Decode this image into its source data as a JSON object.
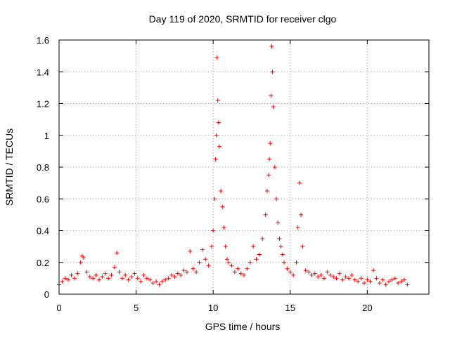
{
  "chart_data": {
    "type": "scatter",
    "title": "Day 119 of 2020, SRMTID for receiver clgo",
    "xlabel": "GPS time / hours",
    "ylabel": "SRMTID / TECUs",
    "xlim": [
      0,
      24
    ],
    "ylim": [
      0,
      1.6
    ],
    "xticks": [
      0,
      5,
      10,
      15,
      20
    ],
    "yticks": [
      0,
      0.2,
      0.4,
      0.6,
      0.8,
      1,
      1.2,
      1.4,
      1.6
    ],
    "grid": true,
    "marker": "+",
    "color": "#ff0000",
    "series": [
      {
        "name": "SRMTID",
        "x": [
          0.0,
          0.2,
          0.4,
          0.6,
          0.8,
          1.0,
          1.2,
          1.4,
          1.5,
          1.6,
          1.8,
          2.0,
          2.2,
          2.4,
          2.6,
          2.8,
          3.0,
          3.2,
          3.4,
          3.6,
          3.75,
          3.9,
          4.1,
          4.3,
          4.5,
          4.7,
          4.9,
          5.1,
          5.3,
          5.5,
          5.7,
          5.9,
          6.1,
          6.3,
          6.5,
          6.7,
          6.9,
          7.1,
          7.3,
          7.5,
          7.7,
          7.9,
          8.1,
          8.3,
          8.5,
          8.7,
          8.9,
          9.1,
          9.3,
          9.5,
          9.7,
          9.9,
          10.0,
          10.1,
          10.15,
          10.2,
          10.25,
          10.3,
          10.35,
          10.4,
          10.5,
          10.6,
          10.7,
          10.8,
          10.9,
          11.0,
          11.2,
          11.4,
          11.6,
          11.8,
          12.0,
          12.2,
          12.4,
          12.6,
          12.8,
          13.0,
          13.2,
          13.4,
          13.5,
          13.6,
          13.65,
          13.7,
          13.75,
          13.8,
          13.85,
          13.9,
          14.0,
          14.1,
          14.2,
          14.3,
          14.4,
          14.5,
          14.6,
          14.8,
          15.0,
          15.2,
          15.4,
          15.5,
          15.6,
          15.7,
          15.8,
          16.0,
          16.2,
          16.4,
          16.6,
          16.8,
          17.0,
          17.2,
          17.4,
          17.6,
          17.8,
          18.0,
          18.2,
          18.4,
          18.6,
          18.8,
          19.0,
          19.2,
          19.4,
          19.6,
          19.8,
          20.0,
          20.2,
          20.4,
          20.6,
          20.8,
          21.0,
          21.2,
          21.4,
          21.6,
          21.8,
          22.0,
          22.2,
          22.4,
          22.6
        ],
        "y": [
          0.06,
          0.08,
          0.1,
          0.09,
          0.12,
          0.1,
          0.13,
          0.2,
          0.24,
          0.23,
          0.14,
          0.11,
          0.1,
          0.12,
          0.09,
          0.11,
          0.13,
          0.1,
          0.12,
          0.17,
          0.26,
          0.14,
          0.1,
          0.12,
          0.09,
          0.11,
          0.13,
          0.1,
          0.08,
          0.12,
          0.1,
          0.09,
          0.07,
          0.08,
          0.06,
          0.08,
          0.09,
          0.1,
          0.12,
          0.11,
          0.13,
          0.12,
          0.15,
          0.14,
          0.27,
          0.16,
          0.14,
          0.2,
          0.28,
          0.22,
          0.18,
          0.3,
          0.4,
          0.6,
          0.85,
          1.0,
          1.49,
          1.22,
          1.08,
          0.93,
          0.65,
          0.55,
          0.42,
          0.3,
          0.22,
          0.2,
          0.18,
          0.14,
          0.16,
          0.13,
          0.12,
          0.16,
          0.2,
          0.3,
          0.22,
          0.25,
          0.35,
          0.5,
          0.65,
          0.75,
          0.85,
          0.95,
          1.25,
          1.56,
          1.4,
          1.18,
          0.8,
          0.6,
          0.45,
          0.35,
          0.3,
          0.25,
          0.2,
          0.16,
          0.14,
          0.12,
          0.2,
          0.42,
          0.7,
          0.5,
          0.3,
          0.15,
          0.14,
          0.12,
          0.13,
          0.11,
          0.12,
          0.1,
          0.14,
          0.12,
          0.11,
          0.1,
          0.13,
          0.09,
          0.11,
          0.1,
          0.12,
          0.09,
          0.08,
          0.1,
          0.07,
          0.09,
          0.08,
          0.15,
          0.1,
          0.07,
          0.09,
          0.06,
          0.08,
          0.09,
          0.1,
          0.07,
          0.08,
          0.09,
          0.06
        ]
      }
    ]
  }
}
